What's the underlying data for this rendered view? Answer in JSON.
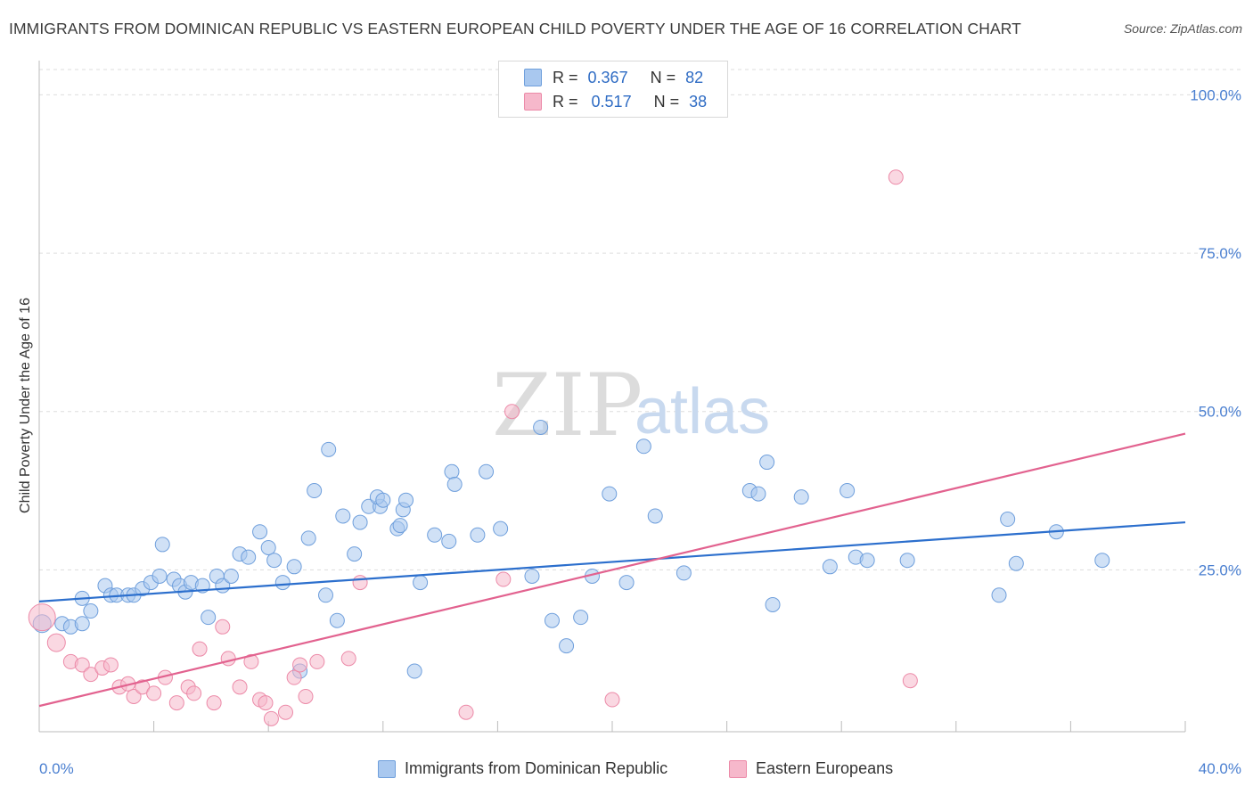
{
  "title": "IMMIGRANTS FROM DOMINICAN REPUBLIC VS EASTERN EUROPEAN CHILD POVERTY UNDER THE AGE OF 16 CORRELATION CHART",
  "source": "Source: ZipAtlas.com",
  "watermark": {
    "zip": "ZIP",
    "atlas": "atlas"
  },
  "legend": {
    "rows": [
      {
        "r_label": "R =",
        "r_value": "0.367",
        "n_label": "N =",
        "n_value": "82"
      },
      {
        "r_label": "R =",
        "r_value": "0.517",
        "n_label": "N =",
        "n_value": "38"
      }
    ]
  },
  "bottom_legend": {
    "items": [
      {
        "label": "Immigrants from Dominican Republic"
      },
      {
        "label": "Eastern Europeans"
      }
    ]
  },
  "colors": {
    "blue_fill": "#a9c8ef",
    "blue_stroke": "#6f9fdc",
    "blue_line": "#2c6fcd",
    "pink_fill": "#f6b8cb",
    "pink_stroke": "#ec8aa8",
    "pink_line": "#e2628f",
    "tick_text": "#4a7fd0",
    "grid": "#dddddd"
  },
  "chart_data": {
    "type": "scatter",
    "title": "IMMIGRANTS FROM DOMINICAN REPUBLIC VS EASTERN EUROPEAN CHILD POVERTY UNDER THE AGE OF 16 CORRELATION CHART",
    "xlabel": "",
    "ylabel": "Child Poverty Under the Age of 16",
    "xlim": [
      0,
      40
    ],
    "ylim": [
      0,
      104
    ],
    "x_ticks": [
      0,
      4,
      8,
      12,
      16,
      20,
      24,
      28,
      32,
      36,
      40
    ],
    "x_tick_labels": [
      {
        "value": 0,
        "label": "0.0%"
      },
      {
        "value": 40,
        "label": "40.0%"
      }
    ],
    "y_ticks": [
      {
        "value": 25,
        "label": "25.0%"
      },
      {
        "value": 50,
        "label": "50.0%"
      },
      {
        "value": 75,
        "label": "75.0%"
      },
      {
        "value": 100,
        "label": "100.0%"
      }
    ],
    "series": [
      {
        "name": "Immigrants from Dominican Republic",
        "color": "blue",
        "trend": {
          "x": [
            0,
            40
          ],
          "y": [
            20.0,
            32.5
          ]
        },
        "points": [
          [
            0.1,
            16.5,
            2
          ],
          [
            0.8,
            16.5,
            1
          ],
          [
            1.1,
            16.0,
            1
          ],
          [
            1.5,
            16.5,
            1
          ],
          [
            1.5,
            20.5,
            1
          ],
          [
            1.8,
            18.5,
            1
          ],
          [
            2.3,
            22.5,
            1
          ],
          [
            2.5,
            21.0,
            1
          ],
          [
            2.7,
            21.0,
            1
          ],
          [
            3.1,
            21.0,
            1
          ],
          [
            3.3,
            21.0,
            1
          ],
          [
            3.6,
            22.0,
            1
          ],
          [
            3.9,
            23.0,
            1
          ],
          [
            4.2,
            24.0,
            1
          ],
          [
            4.3,
            29.0,
            1
          ],
          [
            4.7,
            23.5,
            1
          ],
          [
            4.9,
            22.5,
            1
          ],
          [
            5.1,
            21.5,
            1
          ],
          [
            5.3,
            23.0,
            1
          ],
          [
            5.7,
            22.5,
            1
          ],
          [
            5.9,
            17.5,
            1
          ],
          [
            6.2,
            24.0,
            1
          ],
          [
            6.4,
            22.5,
            1
          ],
          [
            6.7,
            24.0,
            1
          ],
          [
            7.0,
            27.5,
            1
          ],
          [
            7.3,
            27.0,
            1
          ],
          [
            7.7,
            31.0,
            1
          ],
          [
            8.0,
            28.5,
            1
          ],
          [
            8.2,
            26.5,
            1
          ],
          [
            8.5,
            23.0,
            1
          ],
          [
            8.9,
            25.5,
            1
          ],
          [
            9.1,
            9.0,
            1
          ],
          [
            9.4,
            30.0,
            1
          ],
          [
            9.6,
            37.5,
            1
          ],
          [
            10.0,
            21.0,
            1
          ],
          [
            10.1,
            44.0,
            1
          ],
          [
            10.4,
            17.0,
            1
          ],
          [
            10.6,
            33.5,
            1
          ],
          [
            11.0,
            27.5,
            1
          ],
          [
            11.2,
            32.5,
            1
          ],
          [
            11.5,
            35.0,
            1
          ],
          [
            11.9,
            35.0,
            1
          ],
          [
            11.8,
            36.5,
            1
          ],
          [
            12.0,
            36.0,
            1
          ],
          [
            12.5,
            31.5,
            1
          ],
          [
            12.7,
            34.5,
            1
          ],
          [
            12.8,
            36.0,
            1
          ],
          [
            12.6,
            32.0,
            1
          ],
          [
            13.1,
            9.0,
            1
          ],
          [
            13.3,
            23.0,
            1
          ],
          [
            13.8,
            30.5,
            1
          ],
          [
            14.3,
            29.5,
            1
          ],
          [
            14.4,
            40.5,
            1
          ],
          [
            14.5,
            38.5,
            1
          ],
          [
            15.3,
            30.5,
            1
          ],
          [
            15.6,
            40.5,
            1
          ],
          [
            16.1,
            31.5,
            1
          ],
          [
            17.2,
            24.0,
            1
          ],
          [
            17.5,
            47.5,
            1
          ],
          [
            17.9,
            17.0,
            1
          ],
          [
            18.4,
            13.0,
            1
          ],
          [
            18.9,
            17.5,
            1
          ],
          [
            19.3,
            24.0,
            1
          ],
          [
            19.9,
            37.0,
            1
          ],
          [
            20.5,
            23.0,
            1
          ],
          [
            21.1,
            44.5,
            1
          ],
          [
            21.5,
            33.5,
            1
          ],
          [
            22.5,
            24.5,
            1
          ],
          [
            24.8,
            37.5,
            1
          ],
          [
            25.1,
            37.0,
            1
          ],
          [
            25.4,
            42.0,
            1
          ],
          [
            25.6,
            19.5,
            1
          ],
          [
            26.6,
            36.5,
            1
          ],
          [
            27.6,
            25.5,
            1
          ],
          [
            28.2,
            37.5,
            1
          ],
          [
            28.5,
            27.0,
            1
          ],
          [
            28.9,
            26.5,
            1
          ],
          [
            30.3,
            26.5,
            1
          ],
          [
            33.5,
            21.0,
            1
          ],
          [
            33.8,
            33.0,
            1
          ],
          [
            34.1,
            26.0,
            1
          ],
          [
            35.5,
            31.0,
            1
          ],
          [
            37.1,
            26.5,
            1
          ]
        ]
      },
      {
        "name": "Eastern Europeans",
        "color": "pink",
        "trend": {
          "x": [
            0,
            40
          ],
          "y": [
            3.5,
            46.5
          ]
        },
        "points": [
          [
            0.1,
            17.5,
            3
          ],
          [
            0.6,
            13.5,
            2
          ],
          [
            1.1,
            10.5,
            1
          ],
          [
            1.5,
            10.0,
            1
          ],
          [
            1.8,
            8.5,
            1
          ],
          [
            2.2,
            9.5,
            1
          ],
          [
            2.5,
            10.0,
            1
          ],
          [
            2.8,
            6.5,
            1
          ],
          [
            3.1,
            7.0,
            1
          ],
          [
            3.3,
            5.0,
            1
          ],
          [
            3.6,
            6.5,
            1
          ],
          [
            4.0,
            5.5,
            1
          ],
          [
            4.4,
            8.0,
            1
          ],
          [
            4.8,
            4.0,
            1
          ],
          [
            5.2,
            6.5,
            1
          ],
          [
            5.4,
            5.5,
            1
          ],
          [
            5.6,
            12.5,
            1
          ],
          [
            6.1,
            4.0,
            1
          ],
          [
            6.4,
            16.0,
            1
          ],
          [
            6.6,
            11.0,
            1
          ],
          [
            7.0,
            6.5,
            1
          ],
          [
            7.4,
            10.5,
            1
          ],
          [
            7.7,
            4.5,
            1
          ],
          [
            7.9,
            4.0,
            1
          ],
          [
            8.1,
            1.5,
            1
          ],
          [
            8.6,
            2.5,
            1
          ],
          [
            8.9,
            8.0,
            1
          ],
          [
            9.1,
            10.0,
            1
          ],
          [
            9.3,
            5.0,
            1
          ],
          [
            9.7,
            10.5,
            1
          ],
          [
            10.8,
            11.0,
            1
          ],
          [
            11.2,
            23.0,
            1
          ],
          [
            14.9,
            2.5,
            1
          ],
          [
            16.5,
            50.0,
            1
          ],
          [
            16.2,
            23.5,
            1
          ],
          [
            20.0,
            4.5,
            1
          ],
          [
            30.4,
            7.5,
            1
          ],
          [
            29.9,
            87.0,
            1
          ]
        ]
      }
    ]
  }
}
